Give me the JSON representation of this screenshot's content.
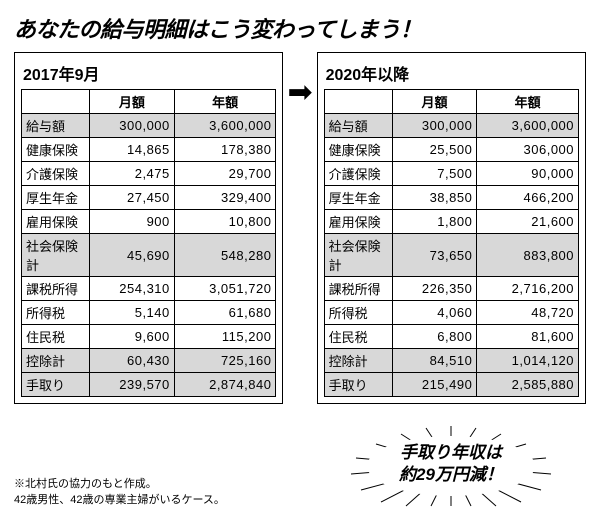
{
  "headline": "あなたの給与明細はこう変わってしまう！",
  "left": {
    "title": "2017年9月",
    "cols": [
      "",
      "月額",
      "年額"
    ],
    "rows": [
      {
        "label": "給与額",
        "m": "300,000",
        "y": "3,600,000",
        "shade": true
      },
      {
        "label": "健康保険",
        "m": "14,865",
        "y": "178,380"
      },
      {
        "label": "介護保険",
        "m": "2,475",
        "y": "29,700"
      },
      {
        "label": "厚生年金",
        "m": "27,450",
        "y": "329,400"
      },
      {
        "label": "雇用保険",
        "m": "900",
        "y": "10,800"
      },
      {
        "label": "社会保険計",
        "m": "45,690",
        "y": "548,280",
        "shade": true
      },
      {
        "label": "課税所得",
        "m": "254,310",
        "y": "3,051,720"
      },
      {
        "label": "所得税",
        "m": "5,140",
        "y": "61,680"
      },
      {
        "label": "住民税",
        "m": "9,600",
        "y": "115,200"
      },
      {
        "label": "控除計",
        "m": "60,430",
        "y": "725,160",
        "shade": true
      },
      {
        "label": "手取り",
        "m": "239,570",
        "y": "2,874,840",
        "shade": true
      }
    ]
  },
  "right": {
    "title": "2020年以降",
    "cols": [
      "",
      "月額",
      "年額"
    ],
    "rows": [
      {
        "label": "給与額",
        "m": "300,000",
        "y": "3,600,000",
        "shade": true
      },
      {
        "label": "健康保険",
        "m": "25,500",
        "y": "306,000"
      },
      {
        "label": "介護保険",
        "m": "7,500",
        "y": "90,000"
      },
      {
        "label": "厚生年金",
        "m": "38,850",
        "y": "466,200"
      },
      {
        "label": "雇用保険",
        "m": "1,800",
        "y": "21,600"
      },
      {
        "label": "社会保険計",
        "m": "73,650",
        "y": "883,800",
        "shade": true
      },
      {
        "label": "課税所得",
        "m": "226,350",
        "y": "2,716,200"
      },
      {
        "label": "所得税",
        "m": "4,060",
        "y": "48,720"
      },
      {
        "label": "住民税",
        "m": "6,800",
        "y": "81,600"
      },
      {
        "label": "控除計",
        "m": "84,510",
        "y": "1,014,120",
        "shade": true
      },
      {
        "label": "手取り",
        "m": "215,490",
        "y": "2,585,880",
        "shade": true
      }
    ]
  },
  "arrow": "➡",
  "note_l1": "※北村氏の協力のもと作成。",
  "note_l2": "42歳男性、42歳の専業主婦がいるケース。",
  "burst_l1": "手取り年収は",
  "burst_l2": "約29万円減！",
  "colors": {
    "shade": "#d8d8d8",
    "border": "#000000",
    "bg": "#ffffff"
  }
}
